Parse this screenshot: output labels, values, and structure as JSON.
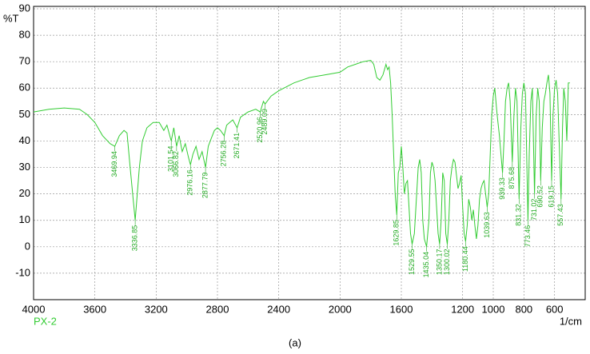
{
  "chart_data": {
    "type": "line",
    "y_label": "%T",
    "x_label": "1/cm",
    "sample": "PX-2",
    "caption": "(a)",
    "xlim": [
      4000,
      400
    ],
    "ylim": [
      -20,
      90
    ],
    "xticks": [
      4000,
      3600,
      3200,
      2800,
      2400,
      2000,
      1600,
      1200,
      1000,
      800,
      600
    ],
    "yticks": [
      -10,
      0,
      10,
      20,
      30,
      40,
      50,
      60,
      70,
      80,
      90
    ],
    "grid": true,
    "color": "#33cc33",
    "series": [
      {
        "name": "PX-2",
        "color": "#33cc33",
        "x": [
          4000,
          3900,
          3800,
          3700,
          3650,
          3600,
          3550,
          3500,
          3469.94,
          3440,
          3410,
          3390,
          3370,
          3336.85,
          3310,
          3290,
          3260,
          3220,
          3180,
          3150,
          3130,
          3101.54,
          3085,
          3066.82,
          3050,
          3030,
          3010,
          2990,
          2976.16,
          2960,
          2940,
          2920,
          2900,
          2877.79,
          2860,
          2840,
          2820,
          2800,
          2780,
          2756.28,
          2740,
          2720,
          2700,
          2671.41,
          2650,
          2600,
          2550,
          2520.96,
          2500,
          2489.09,
          2450,
          2400,
          2300,
          2200,
          2100,
          2000,
          1950,
          1900,
          1850,
          1800,
          1780,
          1760,
          1740,
          1720,
          1700,
          1690,
          1680,
          1670,
          1660,
          1650,
          1640,
          1629.85,
          1620,
          1610,
          1600,
          1590,
          1580,
          1570,
          1560,
          1550,
          1540,
          1529.55,
          1515,
          1500,
          1490,
          1480,
          1470,
          1460,
          1450,
          1435.04,
          1420,
          1410,
          1400,
          1390,
          1380,
          1370,
          1360,
          1350.17,
          1340,
          1330,
          1320,
          1310,
          1300.02,
          1290,
          1280,
          1270,
          1260,
          1250,
          1240,
          1230,
          1220,
          1210,
          1200,
          1190,
          1180.44,
          1170,
          1160,
          1150,
          1140,
          1130,
          1120,
          1110,
          1100,
          1090,
          1080,
          1070,
          1060,
          1050,
          1039.63,
          1030,
          1020,
          1010,
          1000,
          990,
          975,
          960,
          950,
          939.33,
          930,
          920,
          910,
          900,
          890,
          875.68,
          865,
          855,
          845,
          831.32,
          820,
          810,
          800,
          790,
          773.46,
          765,
          755,
          745,
          731.02,
          720,
          710,
          700,
          690.52,
          680,
          670,
          660,
          650,
          640,
          630,
          619.15,
          610,
          600,
          590,
          580,
          570,
          557.43,
          548,
          540,
          530,
          520,
          510,
          500
        ],
        "values": [
          51,
          52,
          52.5,
          52,
          50,
          47,
          42,
          39,
          38,
          42,
          44,
          43,
          30,
          10,
          30,
          40,
          45,
          47,
          47,
          44,
          46,
          40,
          45,
          38,
          42,
          36,
          39,
          34,
          31,
          35,
          38,
          33,
          36,
          30,
          38,
          41,
          44,
          45,
          44,
          42,
          46,
          47,
          48,
          45,
          49,
          51,
          52,
          51,
          55,
          54,
          57,
          59,
          62,
          64,
          65,
          66,
          68,
          69,
          70,
          70.5,
          69,
          64,
          63,
          65,
          69,
          67,
          68,
          62,
          50,
          35,
          20,
          12,
          28,
          30,
          38,
          30,
          20,
          24,
          25,
          15,
          5,
          1,
          5,
          20,
          30,
          33,
          28,
          10,
          3,
          0,
          10,
          28,
          32,
          30,
          25,
          15,
          5,
          1,
          10,
          28,
          25,
          5,
          1,
          10,
          25,
          30,
          33,
          32,
          27,
          22,
          24,
          27,
          15,
          5,
          2,
          8,
          18,
          15,
          10,
          14,
          8,
          3,
          8,
          18,
          22,
          24,
          25,
          20,
          15,
          20,
          35,
          50,
          57,
          60,
          50,
          42,
          35,
          28,
          40,
          55,
          60,
          62,
          55,
          32,
          50,
          60,
          55,
          18,
          45,
          58,
          62,
          58,
          10,
          35,
          55,
          60,
          20,
          50,
          60,
          55,
          25,
          45,
          55,
          58,
          62,
          65,
          58,
          25,
          50,
          60,
          63,
          58,
          40,
          18,
          45,
          60,
          55,
          40,
          62,
          62
        ]
      }
    ],
    "peaks": [
      3469.94,
      3336.85,
      3101.54,
      3066.82,
      2976.16,
      2877.79,
      2756.28,
      2671.41,
      2520.96,
      2489.09,
      1629.85,
      1529.55,
      1435.04,
      1350.17,
      1300.02,
      1180.44,
      1039.63,
      939.33,
      875.68,
      831.32,
      773.46,
      731.02,
      690.52,
      619.15,
      557.43
    ]
  }
}
